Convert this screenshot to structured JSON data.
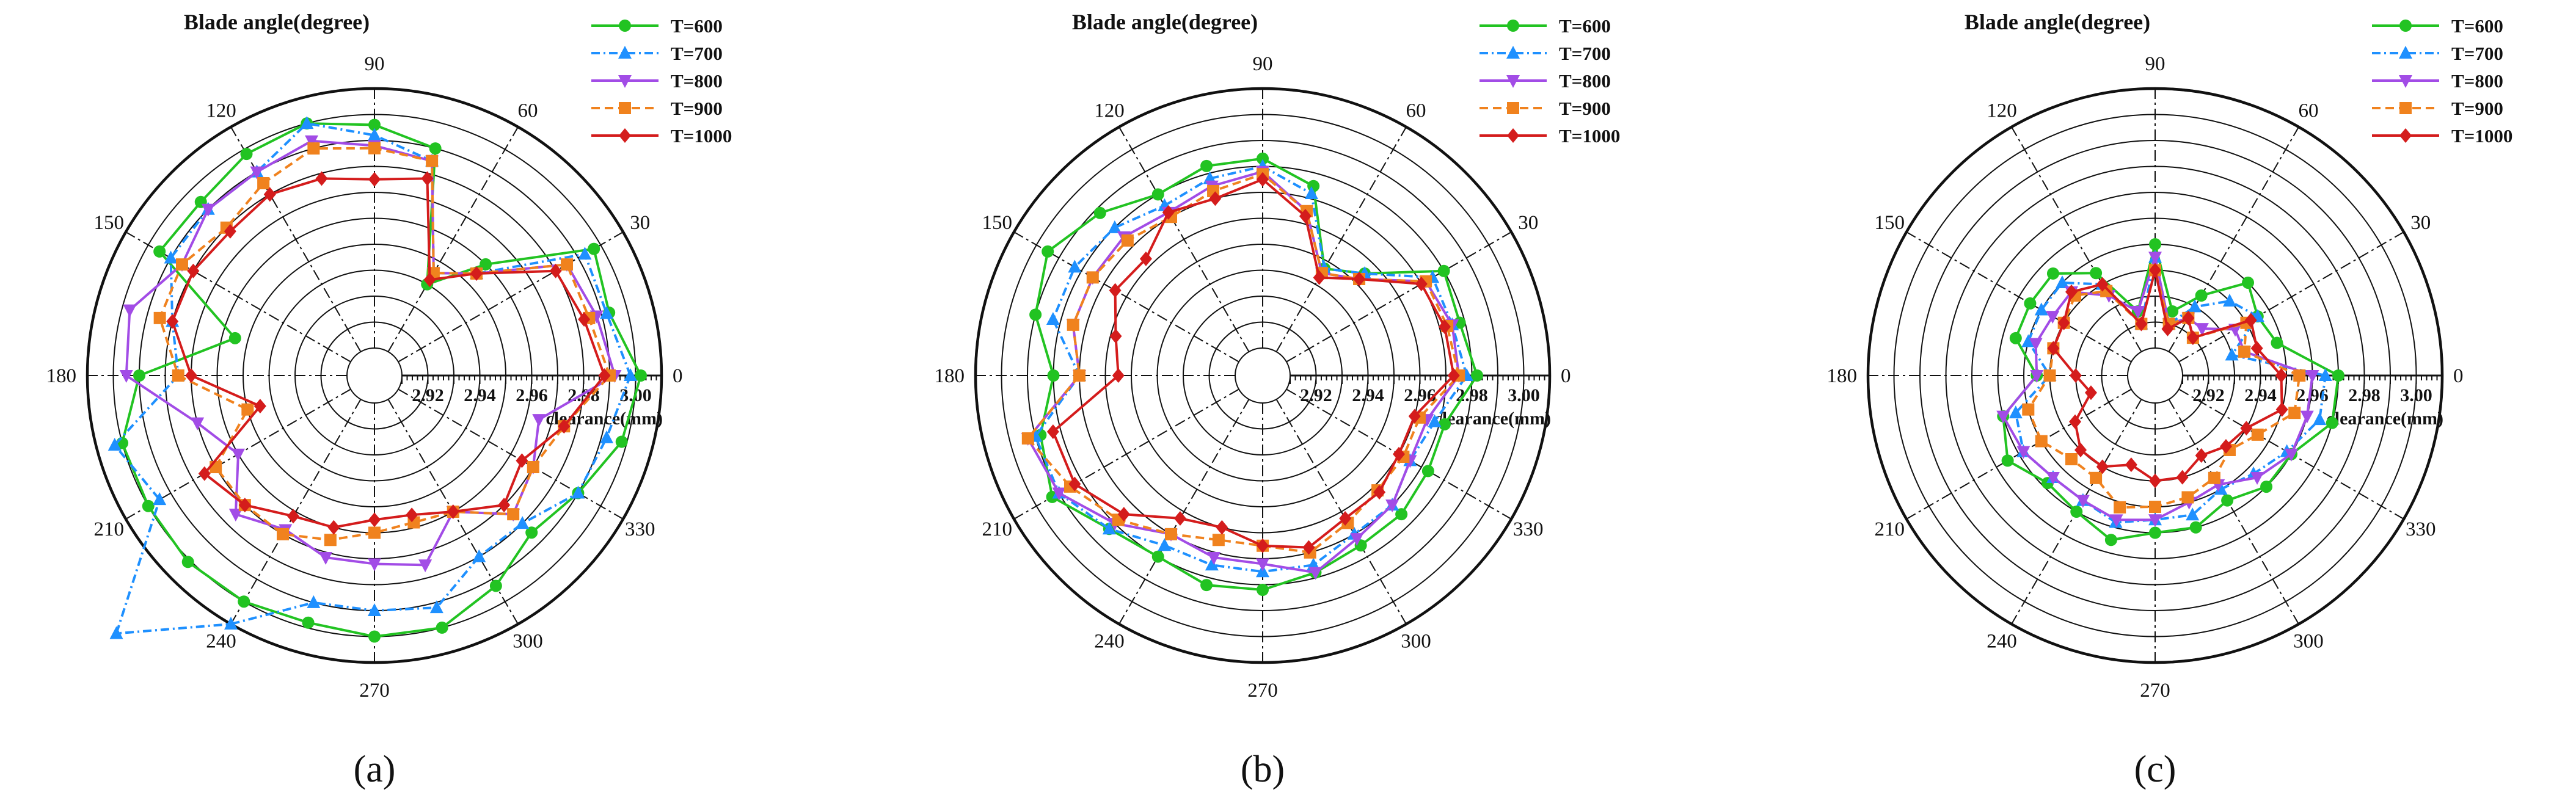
{
  "figure": {
    "panels": [
      "(a)",
      "(b)",
      "(c)"
    ]
  },
  "chart_data": [
    {
      "panel": "(a)",
      "type": "polar-line",
      "title": "Blade angle(degree)",
      "axis_label": "clearance(mm)",
      "angle_ticks": [
        "0",
        "30",
        "60",
        "90",
        "120",
        "150",
        "180",
        "210",
        "240",
        "270",
        "300",
        "330"
      ],
      "radial_ticks": [
        "2.92",
        "2.94",
        "2.96",
        "2.98",
        "3.00"
      ],
      "radial_range": [
        2.91,
        3.01
      ],
      "grid": "concentric circles every 0.01 mm",
      "legend_position": "top-right",
      "angles": [
        0,
        15,
        30,
        45,
        60,
        75,
        90,
        105,
        120,
        135,
        150,
        165,
        180,
        195,
        210,
        225,
        240,
        255,
        270,
        285,
        300,
        315,
        330,
        345
      ],
      "series": [
        {
          "name": "T=600",
          "color": "#22c322",
          "dash": "",
          "marker": "circle",
          "values": [
            3.002,
            2.993,
            2.997,
            2.96,
            2.94,
            2.99,
            2.996,
            3.0,
            2.998,
            2.994,
            2.995,
            2.955,
            2.99,
            3.0,
            3.0,
            3.001,
            3.0,
            2.998,
            3.0,
            3.0,
            2.993,
            2.985,
            2.99,
            2.998
          ]
        },
        {
          "name": "T=700",
          "color": "#1e90ff",
          "dash": "14,6,3,6",
          "marker": "triangle",
          "values": [
            2.998,
            2.992,
            2.993,
            2.955,
            2.945,
            2.985,
            2.992,
            3.0,
            2.99,
            2.99,
            2.99,
            2.98,
            2.975,
            3.003,
            2.995,
            3.04,
            3.01,
            2.99,
            2.99,
            2.992,
            2.98,
            2.98,
            2.99,
            2.992
          ]
        },
        {
          "name": "T=800",
          "color": "#a24ce6",
          "dash": "",
          "marker": "tri-down",
          "values": [
            2.992,
            2.988,
            2.985,
            2.955,
            2.945,
            2.985,
            2.988,
            2.993,
            2.99,
            2.99,
            2.985,
            2.997,
            2.995,
            2.97,
            2.96,
            2.975,
            2.968,
            2.972,
            2.972,
            2.975,
            2.96,
            2.975,
            2.97,
            2.965
          ]
        },
        {
          "name": "T=900",
          "color": "#f0821e",
          "dash": "14,8",
          "marker": "square",
          "values": [
            2.99,
            2.985,
            2.985,
            2.955,
            2.945,
            2.985,
            2.987,
            2.99,
            2.985,
            2.98,
            2.985,
            2.985,
            2.975,
            2.95,
            2.97,
            2.97,
            2.97,
            2.965,
            2.96,
            2.958,
            2.96,
            2.975,
            2.97,
            2.975
          ]
        },
        {
          "name": "T=1000",
          "color": "#d41c1c",
          "dash": "",
          "marker": "diamond",
          "values": [
            2.988,
            2.983,
            2.98,
            2.955,
            2.942,
            2.978,
            2.975,
            2.978,
            2.98,
            2.978,
            2.98,
            2.98,
            2.97,
            2.945,
            2.975,
            2.97,
            2.962,
            2.96,
            2.955,
            2.955,
            2.96,
            2.97,
            2.965,
            2.975
          ]
        }
      ]
    },
    {
      "panel": "(b)",
      "type": "polar-line",
      "title": "Blade angle(degree)",
      "axis_label": "clearance(mm)",
      "angle_ticks": [
        "0",
        "30",
        "60",
        "90",
        "120",
        "150",
        "180",
        "210",
        "240",
        "270",
        "300",
        "330"
      ],
      "radial_ticks": [
        "2.92",
        "2.94",
        "2.96",
        "2.98",
        "3.00"
      ],
      "radial_range": [
        2.91,
        3.01
      ],
      "grid": "concentric circles every 0.01 mm",
      "legend_position": "top-right",
      "angles": [
        0,
        15,
        30,
        45,
        60,
        75,
        90,
        105,
        120,
        135,
        150,
        165,
        180,
        195,
        210,
        225,
        240,
        255,
        270,
        285,
        300,
        315,
        330,
        345
      ],
      "series": [
        {
          "name": "T=600",
          "color": "#22c322",
          "dash": "",
          "marker": "circle",
          "values": [
            2.982,
            2.978,
            2.98,
            2.955,
            2.947,
            2.975,
            2.983,
            2.983,
            2.98,
            2.988,
            2.995,
            2.99,
            2.98,
            2.988,
            2.993,
            2.983,
            2.98,
            2.983,
            2.982,
            2.978,
            2.975,
            2.975,
            2.973,
            2.972
          ]
        },
        {
          "name": "T=700",
          "color": "#1e90ff",
          "dash": "14,6,3,6",
          "marker": "triangle",
          "values": [
            2.978,
            2.975,
            2.975,
            2.955,
            2.947,
            2.972,
            2.98,
            2.978,
            2.975,
            2.98,
            2.983,
            2.983,
            2.97,
            2.99,
            2.99,
            2.983,
            2.975,
            2.975,
            2.975,
            2.975,
            2.97,
            2.97,
            2.965,
            2.968
          ]
        },
        {
          "name": "T=800",
          "color": "#a24ce6",
          "dash": "",
          "marker": "tri-down",
          "values": [
            2.975,
            2.975,
            2.972,
            2.952,
            2.945,
            2.965,
            2.978,
            2.975,
            2.972,
            2.975,
            2.975,
            2.975,
            2.97,
            2.993,
            2.99,
            2.98,
            2.97,
            2.972,
            2.972,
            2.978,
            2.972,
            2.97,
            2.965,
            2.965
          ]
        },
        {
          "name": "T=900",
          "color": "#f0821e",
          "dash": "14,8",
          "marker": "square",
          "values": [
            2.975,
            2.973,
            2.972,
            2.952,
            2.945,
            2.965,
            2.977,
            2.973,
            2.97,
            2.973,
            2.975,
            2.975,
            2.97,
            2.993,
            2.985,
            2.978,
            2.97,
            2.965,
            2.965,
            2.97,
            2.965,
            2.962,
            2.962,
            2.962
          ]
        },
        {
          "name": "T=1000",
          "color": "#d41c1c",
          "dash": "",
          "marker": "diamond",
          "values": [
            2.973,
            2.972,
            2.97,
            2.952,
            2.943,
            2.963,
            2.975,
            2.97,
            2.972,
            2.963,
            2.965,
            2.958,
            2.955,
            2.983,
            2.983,
            2.975,
            2.963,
            2.96,
            2.965,
            2.968,
            2.963,
            2.963,
            2.96,
            2.96
          ]
        }
      ]
    },
    {
      "panel": "(c)",
      "type": "polar-line",
      "title": "Blade angle(degree)",
      "axis_label": "clearance(mm)",
      "angle_ticks": [
        "0",
        "30",
        "60",
        "90",
        "120",
        "150",
        "180",
        "210",
        "240",
        "270",
        "300",
        "330"
      ],
      "radial_ticks": [
        "2.92",
        "2.94",
        "2.96",
        "2.98",
        "3.00"
      ],
      "radial_range": [
        2.91,
        3.01
      ],
      "grid": "concentric circles every 0.01 mm",
      "legend_position": "top-right",
      "angles": [
        0,
        15,
        30,
        45,
        60,
        75,
        90,
        105,
        120,
        135,
        150,
        165,
        180,
        195,
        210,
        225,
        240,
        255,
        270,
        285,
        300,
        315,
        330,
        345
      ],
      "series": [
        {
          "name": "T=600",
          "color": "#22c322",
          "dash": "",
          "marker": "circle",
          "values": [
            2.97,
            2.948,
            2.945,
            2.95,
            2.935,
            2.925,
            2.95,
            2.925,
            2.945,
            2.955,
            2.955,
            2.955,
            2.945,
            2.96,
            2.965,
            2.958,
            2.96,
            2.965,
            2.96,
            2.96,
            2.955,
            2.96,
            2.96,
            2.97
          ]
        },
        {
          "name": "T=700",
          "color": "#1e90ff",
          "dash": "14,6,3,6",
          "marker": "triangle",
          "values": [
            2.965,
            2.93,
            2.945,
            2.94,
            2.93,
            2.92,
            2.945,
            2.92,
            2.94,
            2.95,
            2.95,
            2.95,
            2.94,
            2.955,
            2.958,
            2.955,
            2.955,
            2.958,
            2.955,
            2.955,
            2.95,
            2.953,
            2.958,
            2.965
          ]
        },
        {
          "name": "T=800",
          "color": "#a24ce6",
          "dash": "",
          "marker": "tri-down",
          "values": [
            2.96,
            2.935,
            2.935,
            2.925,
            2.925,
            2.92,
            2.945,
            2.925,
            2.935,
            2.945,
            2.945,
            2.947,
            2.945,
            2.96,
            2.958,
            2.955,
            2.955,
            2.957,
            2.955,
            2.95,
            2.948,
            2.955,
            2.96,
            2.96
          ]
        },
        {
          "name": "T=900",
          "color": "#f0821e",
          "dash": "14,8",
          "marker": "square",
          "values": [
            2.955,
            2.935,
            2.94,
            2.92,
            2.925,
            2.92,
            2.94,
            2.92,
            2.937,
            2.943,
            2.94,
            2.94,
            2.94,
            2.95,
            2.95,
            2.945,
            2.945,
            2.952,
            2.95,
            2.948,
            2.945,
            2.94,
            2.945,
            2.955
          ]
        },
        {
          "name": "T=1000",
          "color": "#d41c1c",
          "dash": "",
          "marker": "diamond",
          "values": [
            2.948,
            2.94,
            2.942,
            2.92,
            2.925,
            2.918,
            2.94,
            2.92,
            2.94,
            2.945,
            2.94,
            2.94,
            2.93,
            2.925,
            2.935,
            2.94,
            2.94,
            2.935,
            2.94,
            2.94,
            2.935,
            2.938,
            2.94,
            2.95
          ]
        }
      ]
    }
  ]
}
